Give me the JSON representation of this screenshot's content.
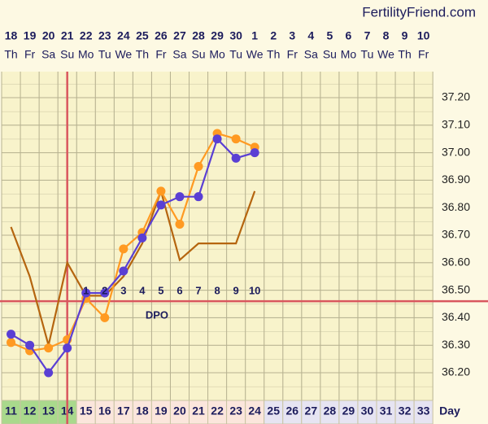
{
  "chart_data": {
    "type": "line",
    "brand": "FertilityFriend.com",
    "dates": [
      "18",
      "19",
      "20",
      "21",
      "22",
      "23",
      "24",
      "25",
      "26",
      "27",
      "28",
      "29",
      "30",
      "1",
      "2",
      "3",
      "4",
      "5",
      "6",
      "7",
      "8",
      "9",
      "10"
    ],
    "weekdays": [
      "Th",
      "Fr",
      "Sa",
      "Su",
      "Mo",
      "Tu",
      "We",
      "Th",
      "Fr",
      "Sa",
      "Su",
      "Mo",
      "Tu",
      "We",
      "Th",
      "Fr",
      "Sa",
      "Su",
      "Mo",
      "Tu",
      "We",
      "Th",
      "Fr"
    ],
    "cycle_days": [
      11,
      12,
      13,
      14,
      15,
      16,
      17,
      18,
      19,
      20,
      21,
      22,
      23,
      24,
      25,
      26,
      27,
      28,
      29,
      30,
      31,
      32,
      33
    ],
    "x_label": "Day",
    "ylim": [
      36.1,
      37.3
    ],
    "yticks": [
      {
        "value": 36.2,
        "label": "36.20"
      },
      {
        "value": 36.3,
        "label": "36.30"
      },
      {
        "value": 36.4,
        "label": "36.40"
      },
      {
        "value": 36.5,
        "label": "36.50"
      },
      {
        "value": 36.6,
        "label": "36.60"
      },
      {
        "value": 36.7,
        "label": "36.70"
      },
      {
        "value": 36.8,
        "label": "36.80"
      },
      {
        "value": 36.9,
        "label": "36.90"
      },
      {
        "value": 37.0,
        "label": "37.00"
      },
      {
        "value": 37.1,
        "label": "37.10"
      },
      {
        "value": 37.2,
        "label": "37.20"
      }
    ],
    "coverline": 36.46,
    "ovulation_day": 14,
    "dpo_label": "DPO",
    "dpo_numbers": [
      "1",
      "2",
      "3",
      "4",
      "5",
      "6",
      "7",
      "8",
      "9",
      "10"
    ],
    "series": [
      {
        "color": "#b5650f",
        "markers": false,
        "values": [
          36.73,
          36.55,
          36.3,
          36.6,
          36.48,
          36.48,
          36.55,
          36.67,
          36.86,
          36.61,
          36.67,
          36.67,
          36.67,
          36.86,
          null,
          null,
          null,
          null,
          null,
          null,
          null,
          null,
          null
        ]
      },
      {
        "color": "#ff9a22",
        "markers": true,
        "values": [
          36.31,
          36.28,
          36.29,
          36.32,
          36.47,
          36.4,
          36.65,
          36.71,
          36.86,
          36.74,
          36.95,
          37.07,
          37.05,
          37.02,
          null,
          null,
          null,
          null,
          null,
          null,
          null,
          null,
          null
        ]
      },
      {
        "color": "#5a3fd4",
        "markers": true,
        "values": [
          36.34,
          36.3,
          36.2,
          36.29,
          36.49,
          36.49,
          36.57,
          36.69,
          36.81,
          36.84,
          36.84,
          37.05,
          36.98,
          37.0,
          null,
          null,
          null,
          null,
          null,
          null,
          null,
          null,
          null
        ]
      }
    ]
  }
}
